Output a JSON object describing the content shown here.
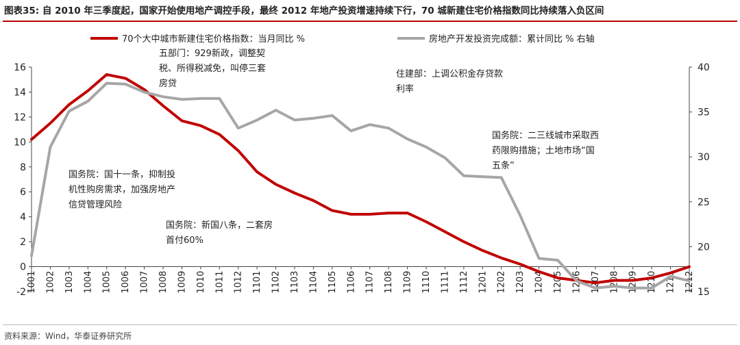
{
  "header": {
    "figure_label": "图表35:",
    "title": "自 2010 年三季度起，国家开始使用地产调控手段，最终 2012 年地产投资增速持续下行，70 城新建住宅价格指数同比持续落入负区间"
  },
  "footer": {
    "source": "资料来源：Wind，华泰证券研究所"
  },
  "chart_data": {
    "type": "line",
    "categories": [
      "1001",
      "1002",
      "1003",
      "1004",
      "1005",
      "1006",
      "1007",
      "1008",
      "1009",
      "1010",
      "1011",
      "1012",
      "1101",
      "1102",
      "1103",
      "1104",
      "1105",
      "1106",
      "1107",
      "1108",
      "1109",
      "1110",
      "1111",
      "1112",
      "1201",
      "1202",
      "1203",
      "1204",
      "1205",
      "1206",
      "1207",
      "1208",
      "1209",
      "1210",
      "1211",
      "1212"
    ],
    "left_axis": {
      "min": -2,
      "max": 16,
      "ticks": [
        -2,
        0,
        2,
        4,
        6,
        8,
        10,
        12,
        14,
        16
      ]
    },
    "right_axis": {
      "min": 15,
      "max": 40,
      "ticks": [
        15,
        20,
        25,
        30,
        35,
        40
      ]
    },
    "legend_position": "top",
    "grid": false,
    "series": [
      {
        "name": "70个大中城市新建住宅价格指数：当月同比  %",
        "axis": "left",
        "color": "#c00000",
        "x_start": 0,
        "values": [
          10.2,
          11.5,
          13.0,
          14.1,
          15.4,
          15.1,
          14.2,
          12.9,
          11.7,
          11.3,
          10.6,
          9.3,
          7.6,
          6.6,
          5.9,
          5.3,
          4.5,
          4.2,
          4.2,
          4.3,
          4.3,
          3.6,
          2.8,
          2.0,
          1.3,
          0.7,
          0.2,
          -0.4,
          -0.9,
          -1.1,
          -1.3,
          -1.1,
          -1.1,
          -0.9,
          -0.5,
          0.0
        ]
      },
      {
        "name": "房地产开发投资完成额：累计同比  %  右轴",
        "axis": "right",
        "color": "#a6a6a6",
        "x_start": 0,
        "values": [
          19.0,
          31.1,
          35.1,
          36.2,
          38.2,
          38.1,
          37.2,
          36.7,
          36.4,
          36.5,
          36.5,
          33.2,
          34.1,
          35.2,
          34.1,
          34.3,
          34.6,
          32.9,
          33.6,
          33.2,
          32.0,
          31.1,
          29.9,
          27.9,
          27.8,
          27.7,
          23.5,
          18.7,
          18.5,
          16.2,
          15.4,
          15.6,
          15.4,
          15.4,
          16.7,
          16.2
        ]
      }
    ],
    "annotations": [
      {
        "lines": [
          "五部门：929新政，调整契",
          "税、所得税减免，叫停三套",
          "房贷"
        ]
      },
      {
        "lines": [
          "住建部：上调公积金存贷款",
          "利率"
        ]
      },
      {
        "lines": [
          "国务院：二三线城市采取西",
          "药限购措施；土地市场“国",
          "五条”"
        ]
      },
      {
        "lines": [
          "国务院：国十一条，抑制投",
          "机性购房需求，加强房地产",
          "信贷管理风险"
        ]
      },
      {
        "lines": [
          "国务院：新国八条，二套房",
          "首付60%"
        ]
      }
    ]
  }
}
